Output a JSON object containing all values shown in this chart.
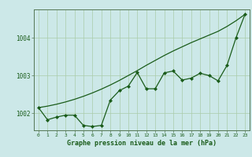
{
  "title": "Graphe pression niveau de la mer (hPa)",
  "bg_color": "#cce8e8",
  "line_color": "#1a5c1a",
  "grid_color": "#aaccaa",
  "spine_color": "#557755",
  "xlim": [
    -0.5,
    23.5
  ],
  "ylim": [
    1001.55,
    1004.75
  ],
  "yticks": [
    1002,
    1003,
    1004
  ],
  "xticks": [
    0,
    1,
    2,
    3,
    4,
    5,
    6,
    7,
    8,
    9,
    10,
    11,
    12,
    13,
    14,
    15,
    16,
    17,
    18,
    19,
    20,
    21,
    22,
    23
  ],
  "smooth_line": [
    1002.15,
    1002.19,
    1002.24,
    1002.3,
    1002.37,
    1002.45,
    1002.54,
    1002.64,
    1002.75,
    1002.87,
    1003.0,
    1003.13,
    1003.27,
    1003.4,
    1003.53,
    1003.65,
    1003.76,
    1003.87,
    1003.97,
    1004.07,
    1004.17,
    1004.3,
    1004.45,
    1004.62
  ],
  "jagged_line": [
    1002.15,
    1001.83,
    1001.9,
    1001.95,
    1001.95,
    1001.68,
    1001.65,
    1001.68,
    1002.35,
    1002.6,
    1002.72,
    1003.08,
    1002.65,
    1002.65,
    1003.07,
    1003.12,
    1002.88,
    1002.93,
    1003.06,
    1003.0,
    1002.86,
    1003.27,
    1004.0,
    1004.62
  ]
}
